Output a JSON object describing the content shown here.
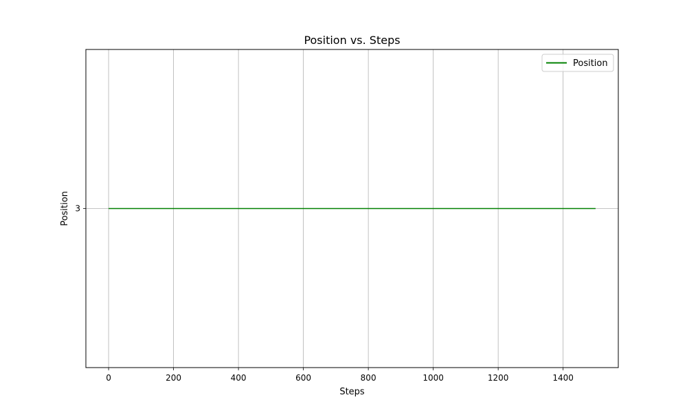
{
  "chart_data": {
    "type": "line",
    "title": "Position vs. Steps",
    "xlabel": "Steps",
    "ylabel": "Position",
    "xlim": [
      -70,
      1570
    ],
    "ylim": [
      2.9,
      3.1
    ],
    "xticks": [
      0,
      200,
      400,
      600,
      800,
      1000,
      1200,
      1400
    ],
    "yticks": [
      3
    ],
    "grid": true,
    "legend_position": "top-right",
    "series": [
      {
        "name": "Position",
        "color": "#008000",
        "x": [
          0,
          1500
        ],
        "y": [
          3,
          3
        ]
      }
    ]
  }
}
